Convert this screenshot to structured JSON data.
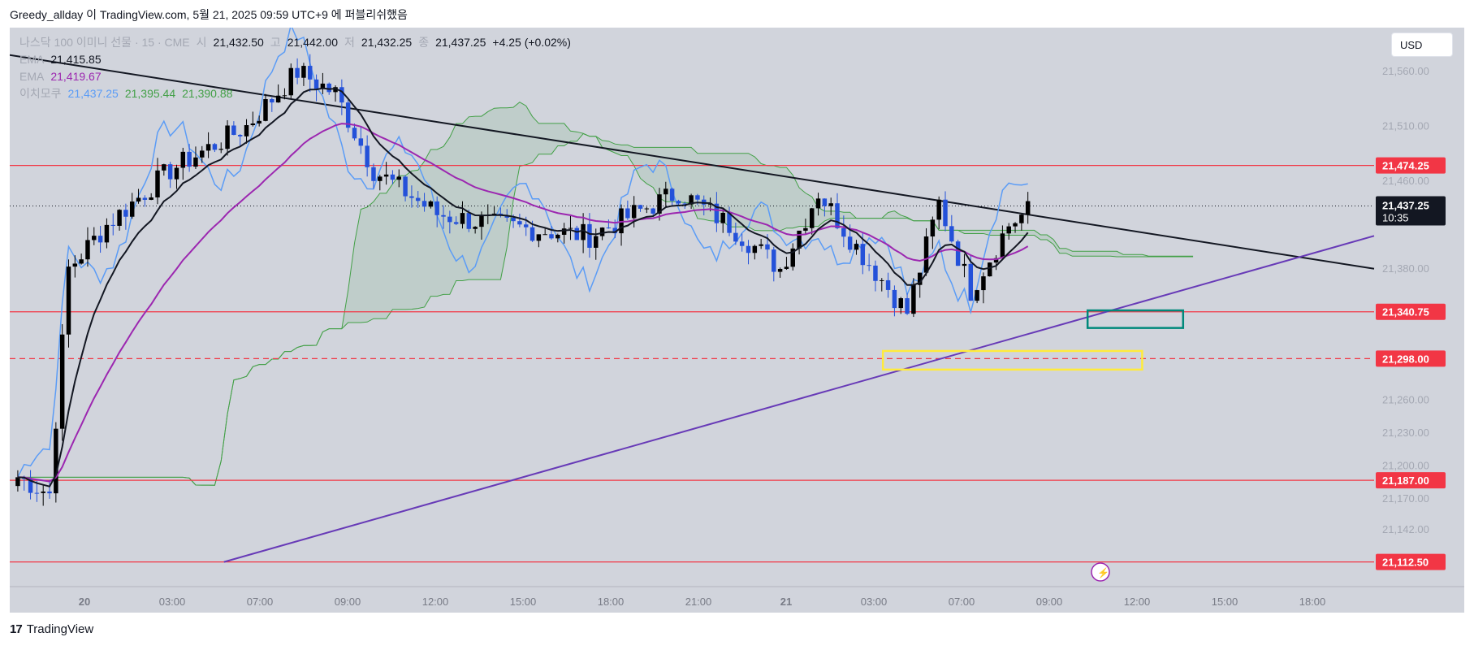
{
  "header": "Greedy_allday 이 TradingView.com, 5월 21, 2025 09:59 UTC+9 에 퍼블리쉬했음",
  "footer": "TradingView",
  "currency": "USD",
  "legend": {
    "symbol": "나스닥 100 이미니 선물 · 15 · CME",
    "open_label": "시",
    "open": "21,432.50",
    "high_label": "고",
    "high": "21,442.00",
    "low_label": "저",
    "low": "21,432.25",
    "close_label": "종",
    "close": "21,437.25",
    "change": "+4.25 (+0.02%)",
    "ema1_label": "EMA",
    "ema1": "21,415.85",
    "ema2_label": "EMA",
    "ema2": "21,419.67",
    "ichimoku_label": "이치모쿠",
    "ich1": "21,437.25",
    "ich2": "21,395.44",
    "ich3": "21,390.88"
  },
  "colors": {
    "up": "#000000",
    "down": "#2451d9",
    "level": "#f23645",
    "ema_slow": "#9c27b0",
    "ema_fast": "#131722",
    "conversion": "#5b9cf6",
    "cloud": "#43a047",
    "trend_up": "#673ab7"
  },
  "chart_data": {
    "type": "candlestick",
    "y_range": [
      21090,
      21600
    ],
    "y_ticks": [
      "21,560.00",
      "21,510.00",
      "21,460.00",
      "21,380.00",
      "21,260.00",
      "21,230.00",
      "21,200.00",
      "21,170.00",
      "21,142.00"
    ],
    "x_ticks": [
      "20",
      "03:00",
      "07:00",
      "09:00",
      "12:00",
      "15:00",
      "18:00",
      "21:00",
      "21",
      "03:00",
      "07:00",
      "09:00",
      "12:00",
      "15:00",
      "18:00"
    ],
    "levels": [
      {
        "value": 21474.25,
        "label": "21,474.25",
        "style": "solid"
      },
      {
        "value": 21340.75,
        "label": "21,340.75",
        "style": "solid"
      },
      {
        "value": 21298.0,
        "label": "21,298.00",
        "style": "dashed"
      },
      {
        "value": 21187.0,
        "label": "21,187.00",
        "style": "solid"
      },
      {
        "value": 21112.5,
        "label": "21,112.50",
        "style": "solid"
      }
    ],
    "last_price": {
      "value": 21437.25,
      "label": "21,437.25",
      "countdown": "10:35"
    },
    "trendlines": [
      {
        "name": "resistance",
        "from": [
          0,
          21575
        ],
        "to": [
          1.0,
          21380
        ]
      },
      {
        "name": "support",
        "from": [
          0.157,
          21112.5
        ],
        "to": [
          1.0,
          21410
        ]
      }
    ],
    "zones": [
      {
        "name": "yellow-box",
        "x": [
          0.64,
          0.83
        ],
        "y": [
          21288,
          21305
        ],
        "color": "#ffeb3b"
      },
      {
        "name": "teal-box",
        "x": [
          0.79,
          0.86
        ],
        "y": [
          21326,
          21342
        ],
        "color": "#00897b"
      }
    ]
  }
}
